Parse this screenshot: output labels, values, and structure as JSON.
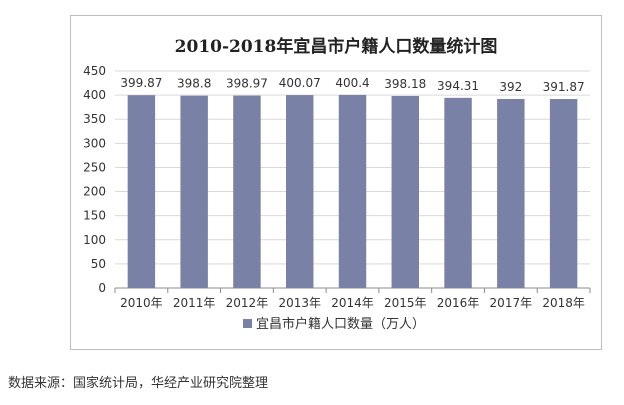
{
  "page": {
    "source_note": "数据来源：国家统计局，华经产业研究院整理"
  },
  "chart_data": {
    "type": "bar",
    "title": "2010-2018年宜昌市户籍人口数量统计图",
    "categories": [
      "2010年",
      "2011年",
      "2012年",
      "2013年",
      "2014年",
      "2015年",
      "2016年",
      "2017年",
      "2018年"
    ],
    "series": [
      {
        "name": "宜昌市户籍人口数量（万人）",
        "values": [
          399.87,
          398.8,
          398.97,
          400.07,
          400.4,
          398.18,
          394.31,
          392,
          391.87
        ],
        "labels": [
          "399.87",
          "398.8",
          "398.97",
          "400.07",
          "400.4",
          "398.18",
          "394.31",
          "392",
          "391.87"
        ],
        "color": "#7a81a6"
      }
    ],
    "ylim": [
      0,
      450
    ],
    "yticks": [
      0,
      50,
      100,
      150,
      200,
      250,
      300,
      350,
      400,
      450
    ],
    "grid": true,
    "legend": "bottom",
    "xlabel": "",
    "ylabel": ""
  }
}
